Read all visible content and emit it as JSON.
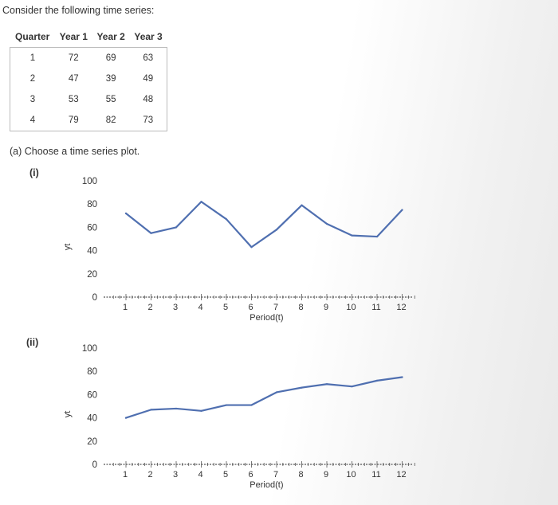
{
  "intro": "Consider the following time series:",
  "table": {
    "headers": [
      "Quarter",
      "Year 1",
      "Year 2",
      "Year 3"
    ],
    "rows": [
      [
        "1",
        "72",
        "69",
        "63"
      ],
      [
        "2",
        "47",
        "39",
        "49"
      ],
      [
        "3",
        "53",
        "55",
        "48"
      ],
      [
        "4",
        "79",
        "82",
        "73"
      ]
    ]
  },
  "question_a": "(a) Choose a time series plot.",
  "options": [
    {
      "label": "(i)"
    },
    {
      "label": "(ii)"
    }
  ],
  "colors": {
    "line": "#4f6fb0",
    "axis": "#555555"
  },
  "chart_data": [
    {
      "type": "line",
      "ylabel": "yt",
      "xlabel": "Period(t)",
      "ylim": [
        0,
        100
      ],
      "yticks": [
        0,
        20,
        40,
        60,
        80,
        100
      ],
      "x": [
        1,
        2,
        3,
        4,
        5,
        6,
        7,
        8,
        9,
        10,
        11,
        12
      ],
      "values": [
        72,
        55,
        60,
        82,
        67,
        43,
        58,
        79,
        63,
        53,
        52,
        75
      ]
    },
    {
      "type": "line",
      "ylabel": "yt",
      "xlabel": "Period(t)",
      "ylim": [
        0,
        100
      ],
      "yticks": [
        0,
        20,
        40,
        60,
        80,
        100
      ],
      "x": [
        1,
        2,
        3,
        4,
        5,
        6,
        7,
        8,
        9,
        10,
        11,
        12
      ],
      "values": [
        40,
        47,
        48,
        46,
        51,
        51,
        62,
        66,
        69,
        67,
        72,
        75
      ]
    }
  ]
}
